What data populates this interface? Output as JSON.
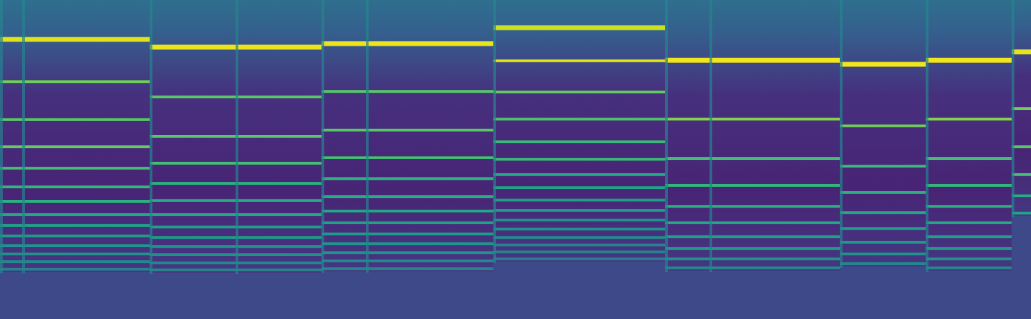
{
  "chart_data": {
    "type": "spectrogram",
    "color": "viridis",
    "tick_labels": false,
    "xlim": [
      0,
      372
    ],
    "ylim": [
      128,
      0
    ],
    "zlim": [
      0,
      1
    ],
    "background_level": 0.22,
    "notes": [
      {
        "onset": 0,
        "offset": 8,
        "harmonics": [
          15.8,
          32.8,
          48.0,
          58.9,
          67.5,
          75.0,
          80.8,
          86.1,
          90.5,
          94.7,
          98.6,
          101.9,
          105.0,
          108.0
        ],
        "levels": [
          0.95,
          0.78,
          0.74,
          0.76,
          0.7,
          0.66,
          0.64,
          0.6,
          0.57,
          0.55,
          0.52,
          0.5,
          0.47,
          0.44
        ]
      },
      {
        "onset": 8,
        "offset": 54,
        "harmonics": [
          15.8,
          32.8,
          48.0,
          58.9,
          67.5,
          75.0,
          80.8,
          86.1,
          90.5,
          94.7,
          98.6,
          101.9,
          105.0,
          108.0
        ],
        "levels": [
          0.95,
          0.78,
          0.74,
          0.76,
          0.7,
          0.66,
          0.64,
          0.6,
          0.57,
          0.55,
          0.52,
          0.5,
          0.47,
          0.44
        ]
      },
      {
        "onset": 54,
        "offset": 85,
        "harmonics": [
          18.9,
          38.9,
          54.7,
          65.5,
          73.6,
          80.5,
          86.1,
          91.1,
          95.3,
          98.9,
          102.2,
          105.5,
          108.3
        ],
        "levels": [
          0.97,
          0.74,
          0.74,
          0.7,
          0.64,
          0.62,
          0.6,
          0.57,
          0.55,
          0.52,
          0.5,
          0.47,
          0.44
        ]
      },
      {
        "onset": 85,
        "offset": 116,
        "harmonics": [
          18.9,
          38.9,
          54.7,
          65.5,
          73.6,
          80.5,
          86.1,
          91.1,
          95.3,
          98.9,
          102.2,
          105.5,
          108.3
        ],
        "levels": [
          0.97,
          0.74,
          0.74,
          0.7,
          0.64,
          0.62,
          0.6,
          0.57,
          0.55,
          0.52,
          0.5,
          0.47,
          0.44
        ]
      },
      {
        "onset": 116,
        "offset": 132,
        "harmonics": [
          17.5,
          36.7,
          52.2,
          63.3,
          71.7,
          78.9,
          84.7,
          89.4,
          93.9,
          97.8,
          101.4,
          104.7,
          107.8
        ],
        "levels": [
          0.97,
          0.74,
          0.74,
          0.7,
          0.64,
          0.62,
          0.6,
          0.57,
          0.55,
          0.52,
          0.5,
          0.47,
          0.44
        ]
      },
      {
        "onset": 132,
        "offset": 178,
        "harmonics": [
          17.5,
          36.7,
          52.2,
          63.3,
          71.7,
          78.9,
          84.7,
          89.4,
          93.9,
          97.8,
          101.4,
          104.7,
          107.8
        ],
        "levels": [
          0.97,
          0.74,
          0.74,
          0.7,
          0.64,
          0.62,
          0.6,
          0.57,
          0.55,
          0.52,
          0.5,
          0.47,
          0.44
        ]
      },
      {
        "onset": 178,
        "offset": 240,
        "harmonics": [
          11.1,
          24.4,
          36.9,
          47.8,
          56.9,
          63.9,
          70.0,
          75.3,
          80.3,
          84.4,
          88.3,
          91.9,
          95.3,
          98.3,
          101.1,
          103.9
        ],
        "levels": [
          0.92,
          0.95,
          0.76,
          0.72,
          0.68,
          0.68,
          0.6,
          0.58,
          0.56,
          0.55,
          0.52,
          0.5,
          0.48,
          0.46,
          0.44,
          0.42
        ]
      },
      {
        "onset": 240,
        "offset": 256,
        "harmonics": [
          24.2,
          47.8,
          63.6,
          74.4,
          82.8,
          89.4,
          95.0,
          99.7,
          103.9,
          107.5
        ],
        "levels": [
          0.98,
          0.82,
          0.7,
          0.66,
          0.64,
          0.6,
          0.57,
          0.54,
          0.5,
          0.46
        ]
      },
      {
        "onset": 256,
        "offset": 303,
        "harmonics": [
          24.2,
          47.8,
          63.6,
          74.4,
          82.8,
          89.4,
          95.0,
          99.7,
          103.9,
          107.5
        ],
        "levels": [
          0.98,
          0.82,
          0.7,
          0.66,
          0.64,
          0.6,
          0.57,
          0.54,
          0.5,
          0.46
        ]
      },
      {
        "onset": 303,
        "offset": 334,
        "harmonics": [
          25.8,
          50.5,
          66.7,
          77.2,
          85.3,
          91.7,
          97.2,
          101.9,
          105.8
        ],
        "levels": [
          0.98,
          0.78,
          0.68,
          0.64,
          0.6,
          0.56,
          0.54,
          0.5,
          0.46
        ]
      },
      {
        "onset": 334,
        "offset": 365,
        "harmonics": [
          24.2,
          47.8,
          63.6,
          74.4,
          82.8,
          89.4,
          95.0,
          99.7,
          103.9,
          107.5
        ],
        "levels": [
          0.98,
          0.82,
          0.7,
          0.66,
          0.64,
          0.6,
          0.57,
          0.54,
          0.5,
          0.46
        ]
      },
      {
        "onset": 365,
        "offset": 372,
        "harmonics": [
          20.8,
          43.6,
          58.9,
          70.0,
          78.6,
          85.5
        ],
        "levels": [
          0.96,
          0.78,
          0.74,
          0.7,
          0.62,
          0.58
        ]
      }
    ]
  }
}
